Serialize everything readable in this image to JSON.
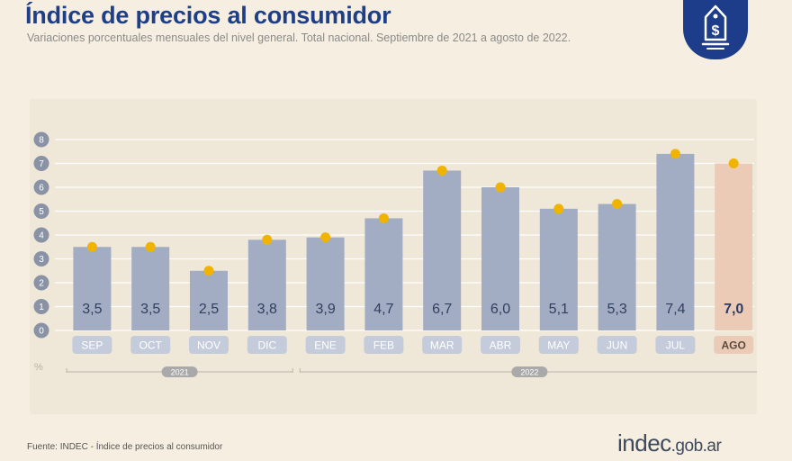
{
  "header": {
    "title": "Índice de precios al consumidor",
    "subtitle": "Variaciones porcentuales mensuales del nivel general. Total nacional. Septiembre de 2021 a agosto de 2022."
  },
  "logo": {
    "icon": "price-tag-dollar-icon",
    "glyph": "$"
  },
  "footer": {
    "source": "Fuente: INDEC - Índice de precios al consumidor",
    "brand_main": "indec",
    "brand_suffix": ".gob.ar"
  },
  "chart_data": {
    "type": "bar",
    "title": "Índice de precios al consumidor",
    "ylabel": "%",
    "ylim": [
      0,
      8
    ],
    "yticks": [
      "0",
      "1",
      "2",
      "3",
      "4",
      "5",
      "6",
      "7",
      "8"
    ],
    "categories": [
      "SEP",
      "OCT",
      "NOV",
      "DIC",
      "ENE",
      "FEB",
      "MAR",
      "ABR",
      "MAY",
      "JUN",
      "JUL",
      "AGO"
    ],
    "values": [
      3.5,
      3.5,
      2.5,
      3.8,
      3.9,
      4.7,
      6.7,
      6.0,
      5.1,
      5.3,
      7.4,
      7.0
    ],
    "labels": [
      "3,5",
      "3,5",
      "2,5",
      "3,8",
      "3,9",
      "4,7",
      "6,7",
      "6,0",
      "5,1",
      "5,3",
      "7,4",
      "7,0"
    ],
    "highlight_index": 11,
    "year_groups": [
      {
        "label": "2021",
        "from": 0,
        "to": 3
      },
      {
        "label": "2022",
        "from": 4,
        "to": 11
      }
    ],
    "colors": {
      "bar": "#a2adc3",
      "bar_highlight": "#ebcbb6",
      "marker": "#f0b400",
      "label": "#2f3f5e",
      "label_highlight": "#2b3b67",
      "grid": "#ffffff",
      "axis_tick_bg": "#8a93a6"
    }
  }
}
